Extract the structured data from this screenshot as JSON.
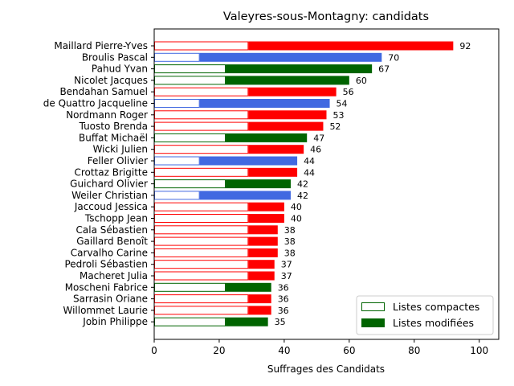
{
  "chart_data": {
    "type": "bar",
    "orientation": "horizontal",
    "title": "Valeyres-sous-Montagny: candidats",
    "xlabel": "Suffrages des Candidats",
    "ylabel": "",
    "xlim": [
      0,
      106
    ],
    "xticks": [
      0,
      20,
      40,
      60,
      80,
      100
    ],
    "grid": false,
    "legend_position": "bottom-right",
    "legend": [
      {
        "name": "Listes compactes",
        "style": "outline",
        "color": "#006400"
      },
      {
        "name": "Listes modifiées",
        "style": "filled",
        "color": "#006400"
      }
    ],
    "colors": {
      "red": "#ff0000",
      "blue": "#4169e1",
      "green": "#006400"
    },
    "candidates": [
      {
        "name": "Maillard Pierre-Yves",
        "total": 92,
        "compact": 29,
        "color": "red"
      },
      {
        "name": "Broulis Pascal",
        "total": 70,
        "compact": 14,
        "color": "blue"
      },
      {
        "name": "Pahud Yvan",
        "total": 67,
        "compact": 22,
        "color": "green"
      },
      {
        "name": "Nicolet Jacques",
        "total": 60,
        "compact": 22,
        "color": "green"
      },
      {
        "name": "Bendahan Samuel",
        "total": 56,
        "compact": 29,
        "color": "red"
      },
      {
        "name": "de Quattro Jacqueline",
        "total": 54,
        "compact": 14,
        "color": "blue"
      },
      {
        "name": "Nordmann Roger",
        "total": 53,
        "compact": 29,
        "color": "red"
      },
      {
        "name": "Tuosto Brenda",
        "total": 52,
        "compact": 29,
        "color": "red"
      },
      {
        "name": "Buffat Michaël",
        "total": 47,
        "compact": 22,
        "color": "green"
      },
      {
        "name": "Wicki Julien",
        "total": 46,
        "compact": 29,
        "color": "red"
      },
      {
        "name": "Feller Olivier",
        "total": 44,
        "compact": 14,
        "color": "blue"
      },
      {
        "name": "Crottaz Brigitte",
        "total": 44,
        "compact": 29,
        "color": "red"
      },
      {
        "name": "Guichard Olivier",
        "total": 42,
        "compact": 22,
        "color": "green"
      },
      {
        "name": "Weiler Christian",
        "total": 42,
        "compact": 14,
        "color": "blue"
      },
      {
        "name": "Jaccoud Jessica",
        "total": 40,
        "compact": 29,
        "color": "red"
      },
      {
        "name": "Tschopp Jean",
        "total": 40,
        "compact": 29,
        "color": "red"
      },
      {
        "name": "Cala Sébastien",
        "total": 38,
        "compact": 29,
        "color": "red"
      },
      {
        "name": "Gaillard Benoît",
        "total": 38,
        "compact": 29,
        "color": "red"
      },
      {
        "name": "Carvalho Carine",
        "total": 38,
        "compact": 29,
        "color": "red"
      },
      {
        "name": "Pedroli Sébastien",
        "total": 37,
        "compact": 29,
        "color": "red"
      },
      {
        "name": "Macheret Julia",
        "total": 37,
        "compact": 29,
        "color": "red"
      },
      {
        "name": "Moscheni Fabrice",
        "total": 36,
        "compact": 22,
        "color": "green"
      },
      {
        "name": "Sarrasin Oriane",
        "total": 36,
        "compact": 29,
        "color": "red"
      },
      {
        "name": "Willommet Laurie",
        "total": 36,
        "compact": 29,
        "color": "red"
      },
      {
        "name": "Jobin Philippe",
        "total": 35,
        "compact": 22,
        "color": "green"
      }
    ]
  }
}
